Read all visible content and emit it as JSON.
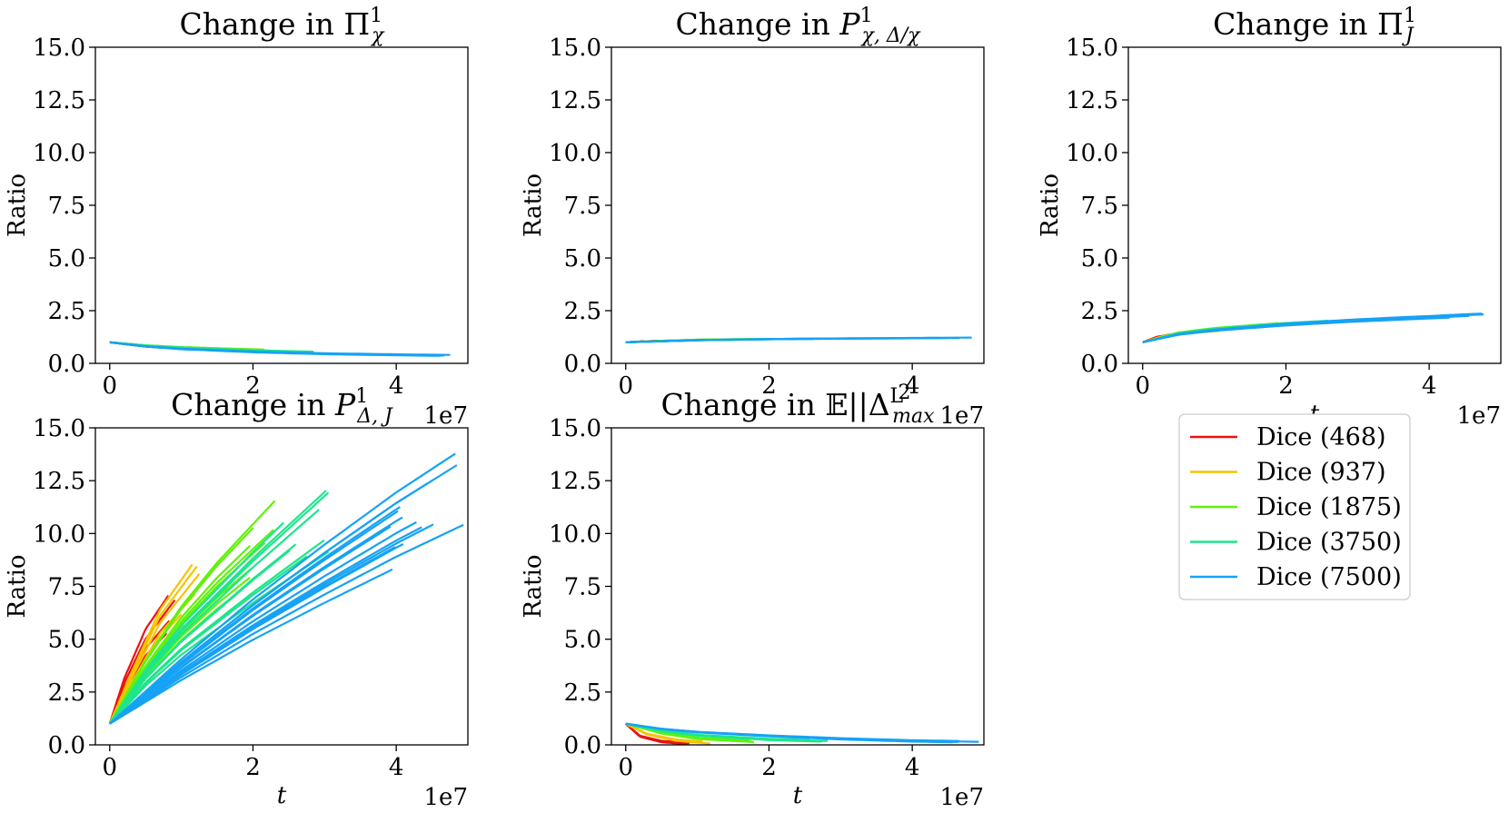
{
  "figure_title": "",
  "chart_data": [
    {
      "type": "line",
      "title_prefix": "Change in ",
      "title_symbol": "Π",
      "title_sub": "χ",
      "title_sup": "1",
      "xlabel": "",
      "ylabel": "Ratio",
      "xlim": [
        -0.2,
        5.0
      ],
      "ylim": [
        0.0,
        15.0
      ],
      "xticks": [
        0,
        2,
        4
      ],
      "xtick_labels": [
        "0",
        "2",
        "4"
      ],
      "yticks": [
        0,
        2.5,
        5,
        7.5,
        10,
        12.5,
        15
      ],
      "ytick_labels": [
        "0.0",
        "2.5",
        "5.0",
        "7.5",
        "10.0",
        "12.5",
        "15.0"
      ],
      "x_multiplier": "1e7",
      "series": [
        {
          "name": "Dice (468)",
          "color": "#ee1111",
          "x": [
            0,
            0.5,
            1,
            1.3
          ],
          "y": [
            1.0,
            0.8,
            0.7,
            0.66
          ]
        },
        {
          "name": "Dice (937)",
          "color": "#f5c400",
          "x": [
            0,
            0.5,
            1,
            1.5
          ],
          "y": [
            1.0,
            0.82,
            0.71,
            0.64
          ]
        },
        {
          "name": "Dice (1875)",
          "color": "#5ff20a",
          "x": [
            0,
            0.5,
            1,
            2,
            2.3
          ],
          "y": [
            1.0,
            0.85,
            0.76,
            0.65,
            0.62
          ]
        },
        {
          "name": "Dice (3750)",
          "color": "#1de58c",
          "x": [
            0,
            0.5,
            1,
            2,
            3
          ],
          "y": [
            1.0,
            0.84,
            0.74,
            0.6,
            0.52
          ]
        },
        {
          "name": "Dice (7500)",
          "color": "#16a2f5",
          "x": [
            0,
            0.5,
            1,
            2,
            3,
            4,
            5
          ],
          "y": [
            1.0,
            0.8,
            0.68,
            0.54,
            0.45,
            0.4,
            0.36
          ]
        }
      ]
    },
    {
      "type": "line",
      "title_prefix": "Change in ",
      "title_symbol": "P",
      "title_sub": "χ, Δ/χ",
      "title_sup": "1",
      "xlabel": "",
      "ylabel": "Ratio",
      "xlim": [
        -0.2,
        5.0
      ],
      "ylim": [
        0.0,
        15.0
      ],
      "xticks": [
        0,
        2,
        4
      ],
      "xtick_labels": [
        "0",
        "2",
        "4"
      ],
      "yticks": [
        0,
        2.5,
        5,
        7.5,
        10,
        12.5,
        15
      ],
      "ytick_labels": [
        "0.0",
        "2.5",
        "5.0",
        "7.5",
        "10.0",
        "12.5",
        "15.0"
      ],
      "x_multiplier": "1e7",
      "series": [
        {
          "name": "Dice (468)",
          "color": "#ee1111",
          "x": [
            0,
            0.3,
            0.7
          ],
          "y": [
            1.0,
            1.05,
            1.08
          ]
        },
        {
          "name": "Dice (937)",
          "color": "#f5c400",
          "x": [
            0,
            0.5,
            1.1
          ],
          "y": [
            1.0,
            1.06,
            1.1
          ]
        },
        {
          "name": "Dice (1875)",
          "color": "#5ff20a",
          "x": [
            0,
            0.5,
            1,
            2
          ],
          "y": [
            1.0,
            1.07,
            1.12,
            1.16
          ]
        },
        {
          "name": "Dice (3750)",
          "color": "#1de58c",
          "x": [
            0,
            1,
            2,
            3
          ],
          "y": [
            1.0,
            1.1,
            1.15,
            1.18
          ]
        },
        {
          "name": "Dice (7500)",
          "color": "#16a2f5",
          "x": [
            0,
            1,
            2,
            3,
            4,
            5
          ],
          "y": [
            1.0,
            1.1,
            1.15,
            1.18,
            1.2,
            1.22
          ]
        }
      ]
    },
    {
      "type": "line",
      "title_prefix": "Change in ",
      "title_symbol": "Π",
      "title_sub": "J",
      "title_sup": "1",
      "xlabel": "t",
      "ylabel": "Ratio",
      "xlim": [
        -0.2,
        5.0
      ],
      "ylim": [
        0.0,
        15.0
      ],
      "xticks": [
        0,
        2,
        4
      ],
      "xtick_labels": [
        "0",
        "2",
        "4"
      ],
      "yticks": [
        0,
        2.5,
        5,
        7.5,
        10,
        12.5,
        15
      ],
      "ytick_labels": [
        "0.0",
        "2.5",
        "5.0",
        "7.5",
        "10.0",
        "12.5",
        "15.0"
      ],
      "x_multiplier": "1e7",
      "series": [
        {
          "name": "Dice (468)",
          "color": "#ee1111",
          "x": [
            0,
            0.2,
            0.5,
            0.8
          ],
          "y": [
            1.0,
            1.25,
            1.42,
            1.5
          ]
        },
        {
          "name": "Dice (937)",
          "color": "#f5c400",
          "x": [
            0,
            0.3,
            0.7,
            1.2
          ],
          "y": [
            1.0,
            1.3,
            1.48,
            1.6
          ]
        },
        {
          "name": "Dice (1875)",
          "color": "#5ff20a",
          "x": [
            0,
            0.5,
            1,
            2
          ],
          "y": [
            1.0,
            1.45,
            1.65,
            1.9
          ]
        },
        {
          "name": "Dice (3750)",
          "color": "#1de58c",
          "x": [
            0,
            0.5,
            1,
            2,
            3
          ],
          "y": [
            1.0,
            1.42,
            1.62,
            1.88,
            2.05
          ]
        },
        {
          "name": "Dice (7500)",
          "color": "#16a2f5",
          "x": [
            0,
            0.5,
            1,
            2,
            3,
            4,
            5
          ],
          "y": [
            1.0,
            1.38,
            1.58,
            1.85,
            2.05,
            2.2,
            2.35
          ]
        }
      ]
    },
    {
      "type": "line",
      "title_prefix": "Change in ",
      "title_symbol": "P",
      "title_sub": "Δ, J",
      "title_sup": "1",
      "xlabel": "t",
      "ylabel": "Ratio",
      "xlim": [
        -0.2,
        5.0
      ],
      "ylim": [
        0.0,
        15.0
      ],
      "xticks": [
        0,
        2,
        4
      ],
      "xtick_labels": [
        "0",
        "2",
        "4"
      ],
      "yticks": [
        0,
        2.5,
        5,
        7.5,
        10,
        12.5,
        15
      ],
      "ytick_labels": [
        "0.0",
        "2.5",
        "5.0",
        "7.5",
        "10.0",
        "12.5",
        "15.0"
      ],
      "x_multiplier": "1e7",
      "series": [
        {
          "name": "Dice (468)",
          "color": "#ee1111",
          "x": [
            0,
            0.2,
            0.5,
            0.9
          ],
          "y": [
            1.0,
            2.8,
            4.8,
            6.5
          ]
        },
        {
          "name": "Dice (937)",
          "color": "#f5c400",
          "x": [
            0,
            0.3,
            0.7,
            1.2
          ],
          "y": [
            1.0,
            3.0,
            5.5,
            7.5
          ]
        },
        {
          "name": "Dice (1875)",
          "color": "#5ff20a",
          "x": [
            0,
            0.5,
            1,
            1.5,
            2.2
          ],
          "y": [
            1.0,
            3.6,
            5.8,
            7.6,
            9.8
          ]
        },
        {
          "name": "Dice (3750)",
          "color": "#1de58c",
          "x": [
            0,
            0.5,
            1,
            2,
            3
          ],
          "y": [
            1.0,
            3.2,
            5.0,
            8.0,
            10.8
          ]
        },
        {
          "name": "Dice (7500)",
          "color": "#16a2f5",
          "x": [
            0,
            1,
            2,
            3,
            4,
            4.9
          ],
          "y": [
            1.0,
            3.6,
            6.0,
            8.2,
            10.3,
            12.0
          ]
        }
      ]
    },
    {
      "type": "line",
      "title_prefix": "Change in ",
      "title_symbol": "𝔼||Δ",
      "title_sub": "max",
      "title_sup": "L",
      "title_sup2": "2",
      "xlabel": "t",
      "ylabel": "Ratio",
      "xlim": [
        -0.2,
        5.0
      ],
      "ylim": [
        0.0,
        15.0
      ],
      "xticks": [
        0,
        2,
        4
      ],
      "xtick_labels": [
        "0",
        "2",
        "4"
      ],
      "yticks": [
        0,
        2.5,
        5,
        7.5,
        10,
        12.5,
        15
      ],
      "ytick_labels": [
        "0.0",
        "2.5",
        "5.0",
        "7.5",
        "10.0",
        "12.5",
        "15.0"
      ],
      "x_multiplier": "1e7",
      "series": [
        {
          "name": "Dice (468)",
          "color": "#ee1111",
          "x": [
            0,
            0.2,
            0.5,
            0.9
          ],
          "y": [
            1.0,
            0.4,
            0.15,
            0.05
          ]
        },
        {
          "name": "Dice (937)",
          "color": "#f5c400",
          "x": [
            0,
            0.3,
            0.7,
            1.2
          ],
          "y": [
            1.0,
            0.5,
            0.22,
            0.08
          ]
        },
        {
          "name": "Dice (1875)",
          "color": "#5ff20a",
          "x": [
            0,
            0.5,
            1,
            2
          ],
          "y": [
            1.0,
            0.55,
            0.3,
            0.12
          ]
        },
        {
          "name": "Dice (3750)",
          "color": "#1de58c",
          "x": [
            0,
            0.5,
            1,
            2,
            3
          ],
          "y": [
            1.0,
            0.65,
            0.45,
            0.25,
            0.15
          ]
        },
        {
          "name": "Dice (7500)",
          "color": "#16a2f5",
          "x": [
            0,
            0.5,
            1,
            2,
            3,
            4,
            5
          ],
          "y": [
            1.0,
            0.75,
            0.6,
            0.42,
            0.28,
            0.18,
            0.12
          ]
        }
      ]
    }
  ],
  "legend": {
    "placement": "right-below-third-panel",
    "items": [
      {
        "label": "Dice (468)",
        "color": "#ee1111"
      },
      {
        "label": "Dice (937)",
        "color": "#f5c400"
      },
      {
        "label": "Dice (1875)",
        "color": "#5ff20a"
      },
      {
        "label": "Dice (3750)",
        "color": "#1de58c"
      },
      {
        "label": "Dice (7500)",
        "color": "#16a2f5"
      }
    ]
  }
}
